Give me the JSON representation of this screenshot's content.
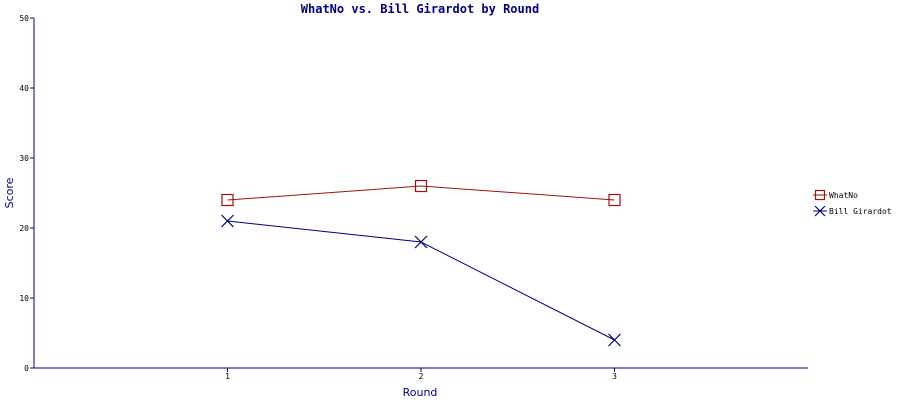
{
  "chart_data": {
    "type": "line",
    "title": "WhatNo vs. Bill Girardot by Round",
    "xlabel": "Round",
    "ylabel": "Score",
    "categories": [
      "1",
      "2",
      "3"
    ],
    "xlim": [
      0,
      4
    ],
    "ylim": [
      0,
      50
    ],
    "yticks": [
      0,
      10,
      20,
      30,
      40,
      50
    ],
    "grid": false,
    "legend_position": "right",
    "series": [
      {
        "name": "WhatNo",
        "color": "#a01010",
        "marker": "square",
        "values": [
          24,
          26,
          24
        ]
      },
      {
        "name": "Bill Girardot",
        "color": "#000080",
        "marker": "x",
        "values": [
          21,
          18,
          4
        ]
      }
    ]
  }
}
